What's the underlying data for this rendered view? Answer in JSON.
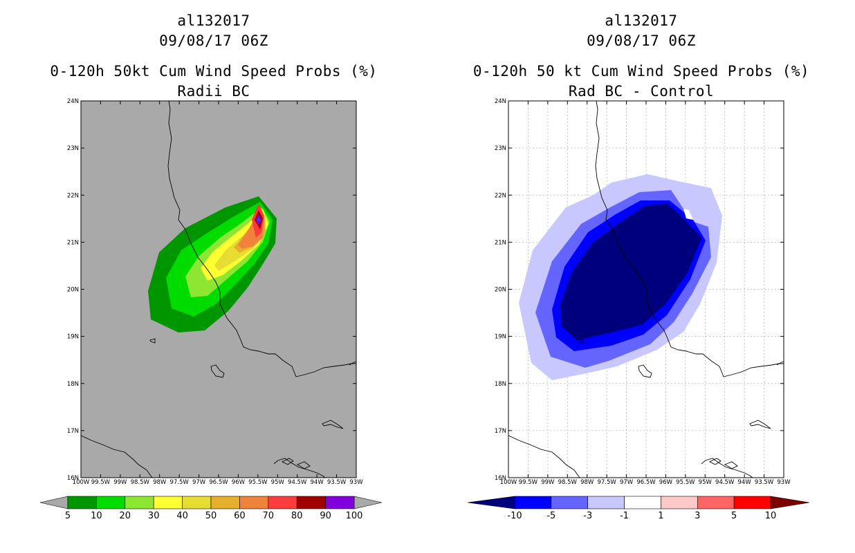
{
  "left": {
    "title1": "al132017",
    "title2": "09/08/17 06Z",
    "title3": "0-120h 50kt Cum Wind Speed Probs (%)",
    "title4": "Radii BC",
    "background": "#a9a9a9",
    "colorbar": {
      "colors": [
        "#009600",
        "#00dc00",
        "#8ce632",
        "#ffff32",
        "#e6dc32",
        "#e6af2d",
        "#f0823c",
        "#fa3c3c",
        "#a00000",
        "#8200dc"
      ],
      "labels": [
        "5",
        "10",
        "20",
        "30",
        "40",
        "50",
        "60",
        "70",
        "80",
        "90",
        "100"
      ]
    }
  },
  "right": {
    "title1": "al132017",
    "title2": "09/08/17 06Z",
    "title3": "0-120h 50 kt Cum Wind Speed Probs (%)",
    "title4": "Rad BC - Control",
    "background": "#ffffff",
    "colorbar": {
      "colors": [
        "#00007d",
        "#0000ff",
        "#6464ff",
        "#c8c8ff",
        "#ffffff",
        "#ffc8c8",
        "#ff6464",
        "#ff0000",
        "#7d0000"
      ],
      "labels": [
        "-10",
        "-5",
        "-3",
        "-1",
        "1",
        "3",
        "5",
        "10"
      ]
    }
  },
  "axes": {
    "lat_labels": [
      "16N",
      "17N",
      "18N",
      "19N",
      "20N",
      "21N",
      "22N",
      "23N",
      "24N"
    ],
    "lon_labels": [
      "100W",
      "99.5W",
      "99W",
      "98.5W",
      "98W",
      "97.5W",
      "97W",
      "96.5W",
      "96W",
      "95.5W",
      "95W",
      "94.5W",
      "94W",
      "93.5W",
      "93W"
    ]
  }
}
